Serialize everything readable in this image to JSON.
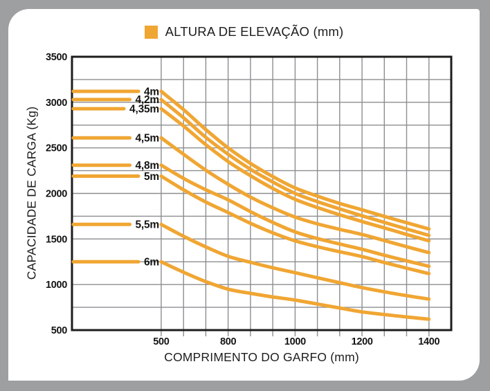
{
  "page": {
    "background_color": "#9d9fa1",
    "card_color": "#ffffff"
  },
  "chart_data": {
    "type": "line",
    "legend_title": "ALTURA DE ELEVAÇÃO (mm)",
    "xlabel": "COMPRIMENTO DO GARFO (mm)",
    "ylabel": "CAPACIDADE DE CARGA (Kg)",
    "accent_color": "#F0A633",
    "grid_color": "#8b8d8f",
    "axis_color": "#1d1d1b",
    "grid": true,
    "legend_position": "top-center",
    "ylim": [
      500,
      3500
    ],
    "y_grid_step": 250,
    "y_ticks": [
      3500,
      3000,
      2500,
      2000,
      1500,
      1000,
      500
    ],
    "x_ticks": [
      {
        "label": "500",
        "mm": 500,
        "u": 4
      },
      {
        "label": "800",
        "mm": 800,
        "u": 7
      },
      {
        "label": "1000",
        "mm": 1000,
        "u": 10
      },
      {
        "label": "1200",
        "mm": 1200,
        "u": 13
      },
      {
        "label": "1400",
        "mm": 1400,
        "u": 16
      }
    ],
    "x_units_max": 17,
    "series_u": [
      4,
      5,
      6,
      7,
      8,
      9,
      10,
      11,
      12,
      13,
      14,
      15,
      16
    ],
    "series": [
      {
        "label": "4m",
        "values": [
          3120,
          2920,
          2700,
          2500,
          2330,
          2185,
          2060,
          1970,
          1890,
          1820,
          1748,
          1678,
          1610
        ]
      },
      {
        "label": "4,2m",
        "values": [
          3030,
          2830,
          2615,
          2430,
          2265,
          2125,
          2000,
          1910,
          1830,
          1755,
          1682,
          1610,
          1540
        ]
      },
      {
        "label": "4,35m",
        "values": [
          2930,
          2740,
          2535,
          2350,
          2195,
          2055,
          1935,
          1845,
          1765,
          1692,
          1622,
          1550,
          1480
        ]
      },
      {
        "label": "4,5m",
        "values": [
          2610,
          2430,
          2255,
          2100,
          1960,
          1842,
          1740,
          1666,
          1606,
          1550,
          1483,
          1415,
          1350
        ]
      },
      {
        "label": "4,8m",
        "values": [
          2310,
          2165,
          2040,
          1930,
          1800,
          1682,
          1578,
          1505,
          1445,
          1387,
          1322,
          1260,
          1200
        ]
      },
      {
        "label": "5m",
        "values": [
          2190,
          2040,
          1905,
          1790,
          1672,
          1568,
          1480,
          1415,
          1360,
          1307,
          1242,
          1180,
          1120
        ]
      },
      {
        "label": "5,5m",
        "values": [
          1660,
          1530,
          1413,
          1310,
          1244,
          1184,
          1130,
          1075,
          1020,
          966,
          920,
          878,
          840
        ]
      },
      {
        "label": "6m",
        "values": [
          1250,
          1135,
          1032,
          950,
          903,
          864,
          830,
          786,
          742,
          700,
          671,
          644,
          620
        ]
      }
    ]
  }
}
